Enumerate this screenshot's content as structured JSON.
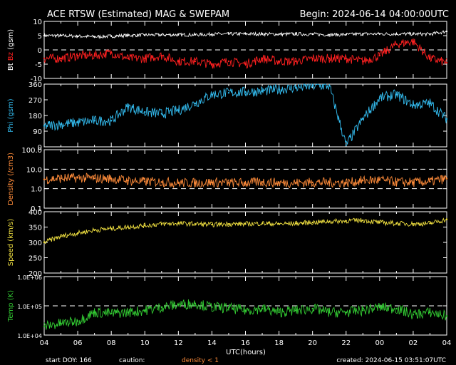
{
  "header": {
    "title": "ACE RTSW (Estimated) MAG & SWEPAM",
    "begin": "Begin: 2024-06-14 04:00:00UTC"
  },
  "footer": {
    "start_doy": "start DOY: 166",
    "caution": "caution:",
    "density_note": "density < 1",
    "created": "created: 2024-06-15 03:51:07UTC"
  },
  "colors": {
    "background": "#000000",
    "frame": "#ffffff",
    "bt": "#ffffff",
    "bz": "#ff2020",
    "phi": "#33bbee",
    "density": "#ff8c3a",
    "speed": "#f0e040",
    "temp": "#33cc33",
    "caution": "#ff8c3a"
  },
  "chart_data": [
    {
      "type": "line",
      "ylabel_parts": [
        "Bt",
        "Bz",
        "(gsm)"
      ],
      "ylim": [
        -10,
        10
      ],
      "yticks": [
        -10,
        -5,
        0,
        5,
        10
      ],
      "ytick_labels": [
        "-10",
        "-5",
        "0",
        "5",
        "10"
      ],
      "ref_lines": [
        0
      ],
      "series": [
        {
          "name": "Bt",
          "x": [
            0,
            1,
            2,
            3,
            4,
            5,
            6,
            7,
            8,
            9,
            10,
            11,
            12,
            13,
            14,
            15,
            16,
            17,
            18,
            19,
            20,
            21,
            22,
            23,
            24
          ],
          "values": [
            5,
            5,
            4.8,
            4.6,
            4.8,
            5.1,
            5.2,
            5.3,
            5.3,
            5.3,
            5.5,
            5.6,
            5.6,
            5.6,
            5.5,
            5.6,
            5.5,
            5.3,
            5.4,
            5.6,
            5.6,
            5.6,
            5.6,
            5.5,
            6.5
          ]
        },
        {
          "name": "Bz",
          "x": [
            0,
            1,
            2,
            3,
            4,
            5,
            6,
            7,
            8,
            9,
            10,
            11,
            12,
            13,
            14,
            15,
            16,
            17,
            18,
            19,
            20,
            21,
            22,
            23,
            24
          ],
          "values": [
            -3,
            -3,
            -2,
            -2,
            -1,
            -3,
            -3,
            -2,
            -4,
            -4,
            -5,
            -4,
            -5,
            -3,
            -4,
            -4,
            -3,
            -3,
            -3,
            -4,
            -2,
            2,
            3,
            -3,
            -4.5
          ]
        }
      ]
    },
    {
      "type": "scatter",
      "ylabel": "Phi (gsm)",
      "ylim": [
        0,
        360
      ],
      "yticks": [
        0,
        90,
        180,
        270,
        360
      ],
      "ytick_labels": [
        "0",
        "90",
        "180",
        "270",
        "360"
      ],
      "series": [
        {
          "name": "Phi",
          "x": [
            0,
            1,
            2,
            3,
            4,
            5,
            6,
            7,
            8,
            9,
            10,
            11,
            12,
            13,
            14,
            15,
            16,
            17,
            18,
            19,
            20,
            21,
            22,
            23,
            24
          ],
          "values": [
            120,
            130,
            140,
            150,
            150,
            230,
            200,
            190,
            210,
            250,
            300,
            310,
            315,
            320,
            330,
            340,
            350,
            350,
            10,
            160,
            280,
            300,
            240,
            250,
            160
          ]
        }
      ]
    },
    {
      "type": "line",
      "ylabel": "Density (/cm3)",
      "yscale": "log",
      "ylim": [
        0.1,
        100
      ],
      "yticks": [
        0.1,
        1,
        10,
        100
      ],
      "ytick_labels": [
        "0.1",
        "1.0",
        "10.0",
        "100.0"
      ],
      "ref_lines": [
        1,
        10
      ],
      "series": [
        {
          "name": "Density",
          "x": [
            0,
            1,
            2,
            3,
            4,
            5,
            6,
            7,
            8,
            9,
            10,
            11,
            12,
            13,
            14,
            15,
            16,
            17,
            18,
            19,
            20,
            21,
            22,
            23,
            24
          ],
          "values": [
            3,
            3.4,
            3.6,
            3.4,
            3.3,
            2.6,
            2.3,
            2.2,
            2,
            2,
            2.1,
            2,
            2,
            2.2,
            2,
            2,
            2.1,
            2.1,
            2,
            2.6,
            2.8,
            2.2,
            2.1,
            2.3,
            3.3
          ]
        }
      ]
    },
    {
      "type": "line",
      "ylabel": "Speed (km/s)",
      "ylim": [
        200,
        400
      ],
      "yticks": [
        200,
        250,
        300,
        350,
        400
      ],
      "ytick_labels": [
        "200",
        "250",
        "300",
        "350",
        "400"
      ],
      "series": [
        {
          "name": "Speed",
          "x": [
            0,
            1,
            2,
            3,
            4,
            5,
            6,
            7,
            8,
            9,
            10,
            11,
            12,
            13,
            14,
            15,
            16,
            17,
            18,
            19,
            20,
            21,
            22,
            23,
            24
          ],
          "values": [
            300,
            320,
            330,
            340,
            345,
            350,
            355,
            360,
            362,
            360,
            358,
            360,
            360,
            362,
            360,
            362,
            365,
            368,
            370,
            372,
            365,
            362,
            360,
            362,
            375
          ]
        }
      ]
    },
    {
      "type": "line",
      "ylabel": "Temp (K)",
      "yscale": "log",
      "ylim": [
        10000,
        1000000
      ],
      "yticks": [
        10000,
        100000,
        1000000
      ],
      "ytick_labels": [
        "1.0E+04",
        "1.0E+05",
        "1.0E+06"
      ],
      "ref_lines": [
        100000
      ],
      "series": [
        {
          "name": "Temp",
          "x": [
            0,
            1,
            2,
            3,
            4,
            5,
            6,
            7,
            8,
            9,
            10,
            11,
            12,
            13,
            14,
            15,
            16,
            17,
            18,
            19,
            20,
            21,
            22,
            23,
            24
          ],
          "values": [
            20000,
            25000,
            30000,
            60000,
            55000,
            60000,
            70000,
            90000,
            110000,
            120000,
            90000,
            85000,
            70000,
            80000,
            60000,
            70000,
            80000,
            60000,
            60000,
            70000,
            90000,
            80000,
            50000,
            60000,
            45000
          ]
        }
      ]
    }
  ],
  "x_axis": {
    "label": "UTC(hours)",
    "tick_labels": [
      "04",
      "06",
      "08",
      "10",
      "12",
      "14",
      "16",
      "18",
      "20",
      "22",
      "00",
      "02",
      "04"
    ],
    "range_hours": [
      0,
      24
    ]
  }
}
